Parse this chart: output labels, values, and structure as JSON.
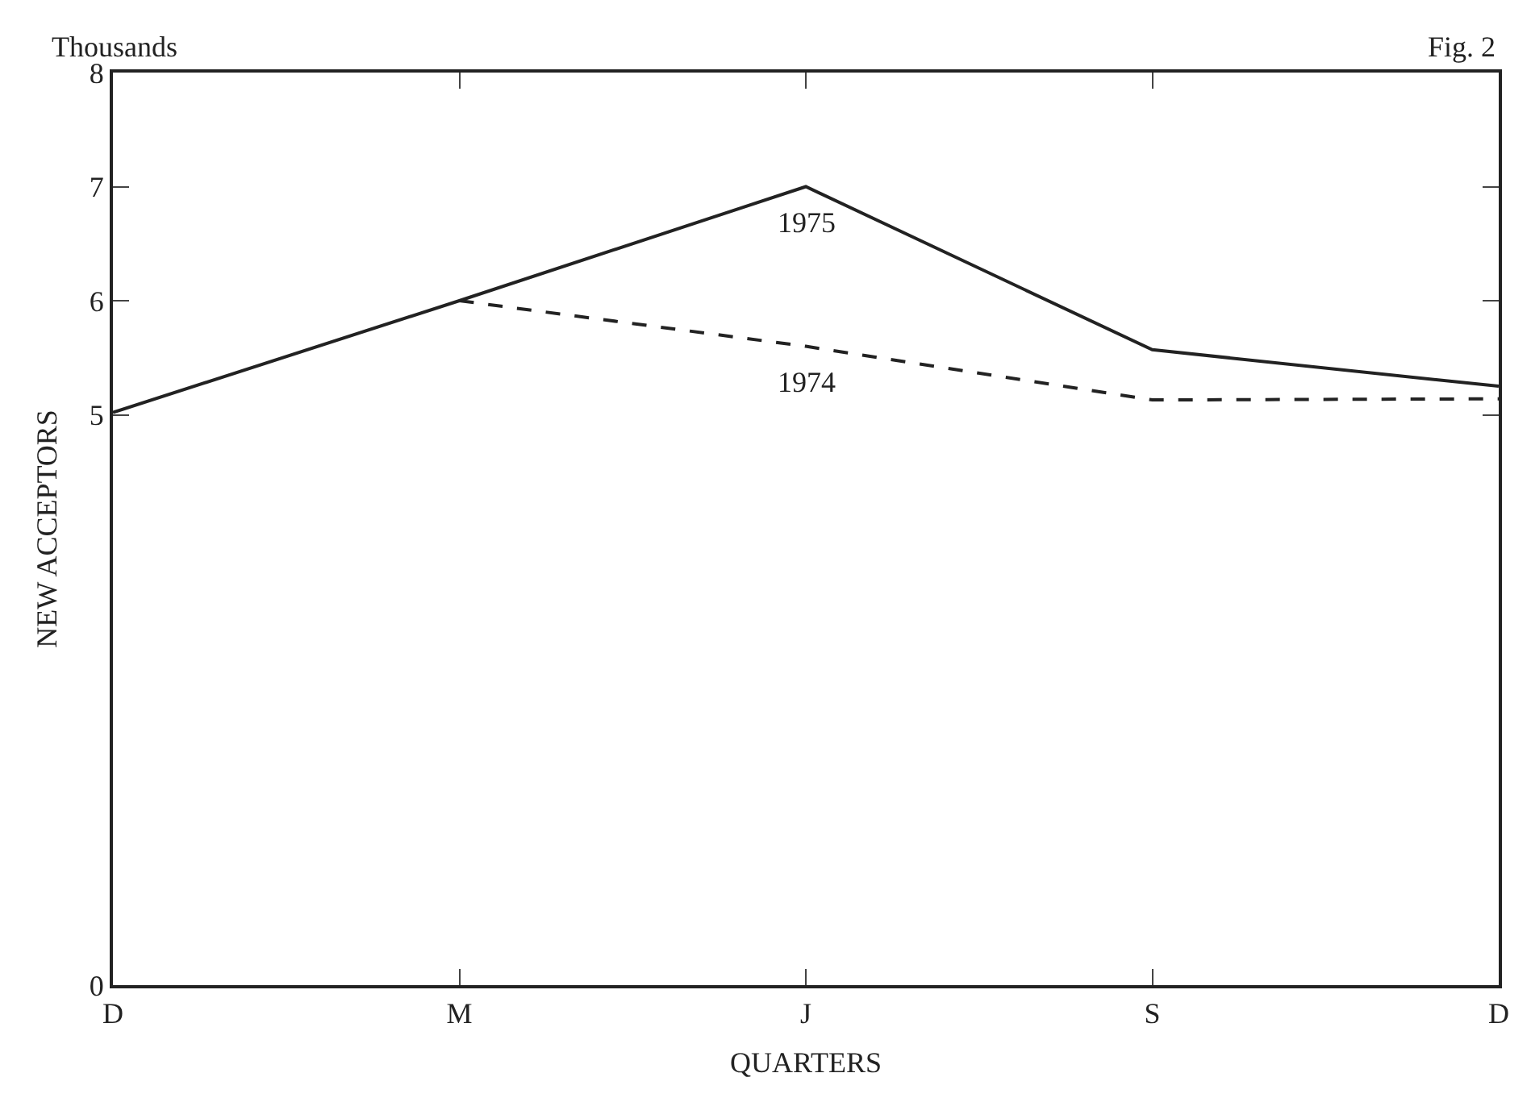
{
  "chart_data": {
    "type": "line",
    "xlabel": "QUARTERS",
    "ylabel": "NEW ACCEPTORS",
    "annotations": [
      "Thousands",
      "Fig. 2"
    ],
    "categories": [
      "D",
      "M",
      "J",
      "S",
      "D"
    ],
    "ylim": [
      0,
      8
    ],
    "yticks": [
      0,
      5,
      6,
      7,
      8
    ],
    "legend": false,
    "marker": "none",
    "series": [
      {
        "name": "1975",
        "color": "#222222",
        "line_style": "solid",
        "values": [
          5.02,
          6.0,
          7.0,
          5.57,
          5.25
        ]
      },
      {
        "name": "1974",
        "color": "#222222",
        "line_style": "dashed",
        "values": [
          null,
          6.0,
          5.6,
          5.13,
          5.14
        ]
      }
    ]
  }
}
